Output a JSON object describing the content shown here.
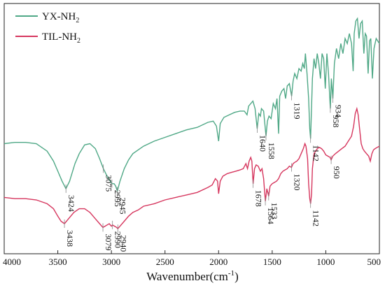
{
  "chart_data": {
    "type": "line",
    "xlabel": "Wavenumber(cm",
    "xlabel_sup": "-1",
    "xlabel_close": ")",
    "ylabel": "",
    "xlim": [
      4000,
      500
    ],
    "x_ticks": [
      4000,
      3500,
      3000,
      2500,
      2000,
      1500,
      1000,
      500
    ],
    "grid": false,
    "legend": "top-left",
    "series": [
      {
        "name": "YX-NH",
        "name_sub": "2",
        "color": "#4fa886",
        "points": [
          [
            4000,
            0.44
          ],
          [
            3900,
            0.445
          ],
          [
            3800,
            0.445
          ],
          [
            3700,
            0.44
          ],
          [
            3600,
            0.41
          ],
          [
            3540,
            0.37
          ],
          [
            3500,
            0.33
          ],
          [
            3460,
            0.29
          ],
          [
            3424,
            0.26
          ],
          [
            3390,
            0.29
          ],
          [
            3340,
            0.36
          ],
          [
            3300,
            0.4
          ],
          [
            3250,
            0.435
          ],
          [
            3200,
            0.44
          ],
          [
            3150,
            0.42
          ],
          [
            3110,
            0.38
          ],
          [
            3075,
            0.34
          ],
          [
            3040,
            0.31
          ],
          [
            3010,
            0.29
          ],
          [
            2995,
            0.28
          ],
          [
            2975,
            0.28
          ],
          [
            2960,
            0.27
          ],
          [
            2945,
            0.25
          ],
          [
            2920,
            0.29
          ],
          [
            2880,
            0.34
          ],
          [
            2840,
            0.375
          ],
          [
            2800,
            0.4
          ],
          [
            2700,
            0.43
          ],
          [
            2600,
            0.45
          ],
          [
            2500,
            0.465
          ],
          [
            2400,
            0.48
          ],
          [
            2300,
            0.495
          ],
          [
            2200,
            0.505
          ],
          [
            2100,
            0.525
          ],
          [
            2050,
            0.53
          ],
          [
            2020,
            0.51
          ],
          [
            2000,
            0.45
          ],
          [
            1985,
            0.52
          ],
          [
            1950,
            0.545
          ],
          [
            1900,
            0.555
          ],
          [
            1850,
            0.565
          ],
          [
            1800,
            0.57
          ],
          [
            1760,
            0.57
          ],
          [
            1735,
            0.555
          ],
          [
            1720,
            0.59
          ],
          [
            1700,
            0.6
          ],
          [
            1680,
            0.61
          ],
          [
            1660,
            0.58
          ],
          [
            1640,
            0.5
          ],
          [
            1625,
            0.56
          ],
          [
            1610,
            0.55
          ],
          [
            1600,
            0.58
          ],
          [
            1580,
            0.57
          ],
          [
            1558,
            0.47
          ],
          [
            1545,
            0.53
          ],
          [
            1530,
            0.55
          ],
          [
            1510,
            0.54
          ],
          [
            1490,
            0.6
          ],
          [
            1470,
            0.58
          ],
          [
            1455,
            0.62
          ],
          [
            1440,
            0.48
          ],
          [
            1430,
            0.63
          ],
          [
            1410,
            0.65
          ],
          [
            1390,
            0.66
          ],
          [
            1375,
            0.62
          ],
          [
            1360,
            0.67
          ],
          [
            1340,
            0.68
          ],
          [
            1319,
            0.63
          ],
          [
            1305,
            0.69
          ],
          [
            1290,
            0.72
          ],
          [
            1270,
            0.7
          ],
          [
            1250,
            0.74
          ],
          [
            1230,
            0.73
          ],
          [
            1215,
            0.76
          ],
          [
            1200,
            0.74
          ],
          [
            1190,
            0.8
          ],
          [
            1175,
            0.72
          ],
          [
            1160,
            0.62
          ],
          [
            1150,
            0.5
          ],
          [
            1142,
            0.46
          ],
          [
            1135,
            0.56
          ],
          [
            1125,
            0.7
          ],
          [
            1110,
            0.78
          ],
          [
            1095,
            0.74
          ],
          [
            1080,
            0.8
          ],
          [
            1065,
            0.76
          ],
          [
            1050,
            0.7
          ],
          [
            1035,
            0.8
          ],
          [
            1020,
            0.78
          ],
          [
            1005,
            0.66
          ],
          [
            990,
            0.8
          ],
          [
            975,
            0.72
          ],
          [
            958,
            0.58
          ],
          [
            948,
            0.7
          ],
          [
            934,
            0.62
          ],
          [
            920,
            0.76
          ],
          [
            900,
            0.82
          ],
          [
            880,
            0.78
          ],
          [
            860,
            0.84
          ],
          [
            840,
            0.8
          ],
          [
            820,
            0.86
          ],
          [
            800,
            0.84
          ],
          [
            780,
            0.88
          ],
          [
            760,
            0.84
          ],
          [
            745,
            0.73
          ],
          [
            735,
            0.88
          ],
          [
            720,
            0.93
          ],
          [
            705,
            0.94
          ],
          [
            690,
            0.86
          ],
          [
            675,
            0.92
          ],
          [
            660,
            0.93
          ],
          [
            645,
            0.8
          ],
          [
            632,
            0.88
          ],
          [
            620,
            0.87
          ],
          [
            605,
            0.72
          ],
          [
            592,
            0.85
          ],
          [
            580,
            0.86
          ],
          [
            565,
            0.7
          ],
          [
            550,
            0.82
          ],
          [
            530,
            0.86
          ],
          [
            515,
            0.85
          ],
          [
            500,
            0.84
          ]
        ]
      },
      {
        "name": "TIL-NH",
        "name_sub": "2",
        "color": "#d6365e",
        "points": [
          [
            4000,
            0.225
          ],
          [
            3900,
            0.22
          ],
          [
            3800,
            0.22
          ],
          [
            3700,
            0.215
          ],
          [
            3600,
            0.2
          ],
          [
            3540,
            0.18
          ],
          [
            3500,
            0.15
          ],
          [
            3470,
            0.13
          ],
          [
            3438,
            0.12
          ],
          [
            3400,
            0.14
          ],
          [
            3350,
            0.165
          ],
          [
            3300,
            0.18
          ],
          [
            3250,
            0.18
          ],
          [
            3200,
            0.165
          ],
          [
            3150,
            0.14
          ],
          [
            3110,
            0.12
          ],
          [
            3079,
            0.105
          ],
          [
            3060,
            0.11
          ],
          [
            3040,
            0.115
          ],
          [
            3020,
            0.12
          ],
          [
            3000,
            0.11
          ],
          [
            2990,
            0.115
          ],
          [
            2970,
            0.11
          ],
          [
            2950,
            0.105
          ],
          [
            2940,
            0.1
          ],
          [
            2920,
            0.11
          ],
          [
            2880,
            0.13
          ],
          [
            2840,
            0.15
          ],
          [
            2800,
            0.165
          ],
          [
            2750,
            0.175
          ],
          [
            2700,
            0.19
          ],
          [
            2600,
            0.2
          ],
          [
            2500,
            0.215
          ],
          [
            2400,
            0.225
          ],
          [
            2300,
            0.235
          ],
          [
            2200,
            0.245
          ],
          [
            2100,
            0.265
          ],
          [
            2060,
            0.275
          ],
          [
            2030,
            0.3
          ],
          [
            2010,
            0.29
          ],
          [
            2000,
            0.24
          ],
          [
            1985,
            0.29
          ],
          [
            1960,
            0.31
          ],
          [
            1920,
            0.32
          ],
          [
            1880,
            0.325
          ],
          [
            1840,
            0.33
          ],
          [
            1800,
            0.335
          ],
          [
            1770,
            0.34
          ],
          [
            1745,
            0.36
          ],
          [
            1730,
            0.34
          ],
          [
            1715,
            0.37
          ],
          [
            1700,
            0.385
          ],
          [
            1690,
            0.37
          ],
          [
            1678,
            0.28
          ],
          [
            1665,
            0.34
          ],
          [
            1650,
            0.355
          ],
          [
            1630,
            0.35
          ],
          [
            1610,
            0.33
          ],
          [
            1595,
            0.34
          ],
          [
            1580,
            0.3
          ],
          [
            1564,
            0.21
          ],
          [
            1550,
            0.26
          ],
          [
            1533,
            0.23
          ],
          [
            1520,
            0.27
          ],
          [
            1500,
            0.28
          ],
          [
            1480,
            0.285
          ],
          [
            1460,
            0.29
          ],
          [
            1440,
            0.3
          ],
          [
            1420,
            0.32
          ],
          [
            1400,
            0.33
          ],
          [
            1380,
            0.335
          ],
          [
            1360,
            0.34
          ],
          [
            1340,
            0.35
          ],
          [
            1320,
            0.345
          ],
          [
            1305,
            0.36
          ],
          [
            1290,
            0.365
          ],
          [
            1270,
            0.37
          ],
          [
            1250,
            0.38
          ],
          [
            1230,
            0.4
          ],
          [
            1210,
            0.42
          ],
          [
            1195,
            0.44
          ],
          [
            1185,
            0.43
          ],
          [
            1170,
            0.38
          ],
          [
            1160,
            0.28
          ],
          [
            1150,
            0.22
          ],
          [
            1142,
            0.2
          ],
          [
            1133,
            0.24
          ],
          [
            1125,
            0.34
          ],
          [
            1110,
            0.4
          ],
          [
            1095,
            0.41
          ],
          [
            1080,
            0.42
          ],
          [
            1060,
            0.425
          ],
          [
            1040,
            0.42
          ],
          [
            1020,
            0.41
          ],
          [
            1000,
            0.395
          ],
          [
            980,
            0.39
          ],
          [
            960,
            0.385
          ],
          [
            950,
            0.375
          ],
          [
            935,
            0.39
          ],
          [
            910,
            0.4
          ],
          [
            880,
            0.41
          ],
          [
            850,
            0.42
          ],
          [
            820,
            0.43
          ],
          [
            790,
            0.45
          ],
          [
            760,
            0.47
          ],
          [
            740,
            0.51
          ],
          [
            725,
            0.56
          ],
          [
            710,
            0.58
          ],
          [
            698,
            0.555
          ],
          [
            685,
            0.5
          ],
          [
            670,
            0.44
          ],
          [
            655,
            0.42
          ],
          [
            640,
            0.41
          ],
          [
            620,
            0.4
          ],
          [
            600,
            0.39
          ],
          [
            585,
            0.37
          ],
          [
            570,
            0.4
          ],
          [
            555,
            0.415
          ],
          [
            540,
            0.42
          ],
          [
            520,
            0.425
          ],
          [
            500,
            0.43
          ]
        ]
      }
    ],
    "annotations": [
      {
        "text": "3424",
        "x": 3424,
        "series": 0
      },
      {
        "text": "3075",
        "x": 3075,
        "series": 0
      },
      {
        "text": "2995",
        "x": 2995,
        "series": 0
      },
      {
        "text": "2945",
        "x": 2945,
        "series": 0
      },
      {
        "text": "1640",
        "x": 1640,
        "series": 0
      },
      {
        "text": "1558",
        "x": 1558,
        "series": 0
      },
      {
        "text": "1319",
        "x": 1319,
        "series": 0
      },
      {
        "text": "1142",
        "x": 1142,
        "series": 0
      },
      {
        "text": "958",
        "x": 958,
        "series": 0
      },
      {
        "text": "934",
        "x": 934,
        "series": 0
      },
      {
        "text": "3438",
        "x": 3438,
        "series": 1
      },
      {
        "text": "3079",
        "x": 3079,
        "series": 1
      },
      {
        "text": "2990",
        "x": 2990,
        "series": 1
      },
      {
        "text": "2940",
        "x": 2940,
        "series": 1
      },
      {
        "text": "1678",
        "x": 1678,
        "series": 1
      },
      {
        "text": "1564",
        "x": 1564,
        "series": 1
      },
      {
        "text": "1533",
        "x": 1533,
        "series": 1
      },
      {
        "text": "1320",
        "x": 1320,
        "series": 1
      },
      {
        "text": "1142",
        "x": 1142,
        "series": 1
      },
      {
        "text": "950",
        "x": 950,
        "series": 1
      }
    ]
  }
}
